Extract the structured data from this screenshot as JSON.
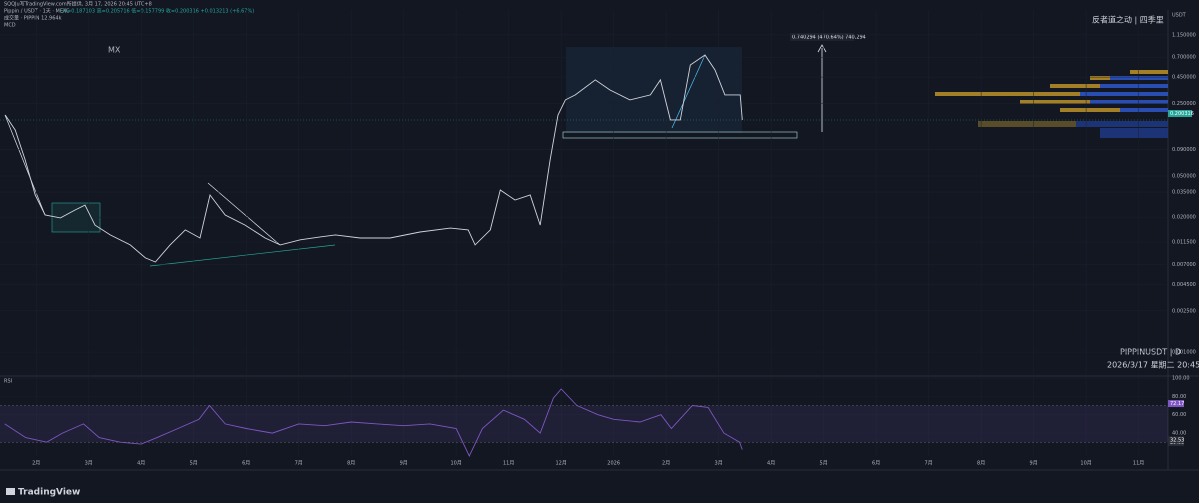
{
  "header": {
    "source": "SQQJu写TradingView.com所提供, 3月 17, 2026 20:45 UTC+8",
    "symbol": "Pippin / USDT · 1天 · MEXC",
    "ohlc": "开=0.187103 高=0.205716 低=0.157799 收=0.200316 +0.013213 (+6.67%)",
    "volume": "成交量 · PIPPIN 12.964k",
    "indicator": "MCD"
  },
  "watermark": "反者道之动 | 四季里",
  "chart_data": [
    {
      "type": "line",
      "log_scale": true,
      "color": "#d1d4dc",
      "currency": "USDT",
      "x": [
        -0.59,
        -0.4,
        -0.21,
        -0.02,
        0.17,
        0.46,
        0.74,
        0.93,
        1.12,
        1.41,
        1.79,
        2.08,
        2.27,
        2.55,
        2.84,
        3.12,
        3.31,
        3.6,
        3.98,
        4.36,
        4.65,
        5.03,
        5.41,
        5.7,
        6.17,
        6.74,
        7.31,
        7.89,
        8.23,
        8.36,
        8.65,
        8.84,
        9.12,
        9.41,
        9.6,
        9.79,
        9.94,
        10.08,
        10.27,
        10.65,
        10.93,
        11.31,
        11.7,
        11.89,
        12.08,
        12.27,
        12.46,
        12.74,
        12.93,
        13.12,
        13.41,
        13.45
      ],
      "values": [
        0.194,
        0.139,
        0.0713,
        0.0328,
        0.021,
        0.0197,
        0.0235,
        0.0262,
        0.0168,
        0.0135,
        0.0108,
        0.00809,
        0.0074,
        0.0108,
        0.0151,
        0.0126,
        0.0328,
        0.021,
        0.0168,
        0.0126,
        0.0108,
        0.0121,
        0.0129,
        0.0135,
        0.0126,
        0.0126,
        0.0144,
        0.0157,
        0.0151,
        0.0108,
        0.0151,
        0.0366,
        0.0293,
        0.0328,
        0.0168,
        0.0713,
        0.194,
        0.271,
        0.303,
        0.423,
        0.338,
        0.271,
        0.303,
        0.423,
        0.174,
        0.174,
        0.589,
        0.736,
        0.527,
        0.303,
        0.303,
        0.174
      ],
      "xlim": [
        -0.69,
        21.56
      ],
      "xticks": [
        {
          "value": 0,
          "label": "2月"
        },
        {
          "value": 1,
          "label": "3月"
        },
        {
          "value": 2,
          "label": "4月"
        },
        {
          "value": 3,
          "label": "5月"
        },
        {
          "value": 4,
          "label": "6月"
        },
        {
          "value": 5,
          "label": "7月"
        },
        {
          "value": 6,
          "label": "8月"
        },
        {
          "value": 7,
          "label": "9月"
        },
        {
          "value": 8,
          "label": "10月"
        },
        {
          "value": 9,
          "label": "11月"
        },
        {
          "value": 10,
          "label": "12月"
        },
        {
          "value": 11,
          "label": "2026"
        },
        {
          "value": 12,
          "label": "2月"
        },
        {
          "value": 13,
          "label": "3月"
        },
        {
          "value": 14,
          "label": "4月"
        },
        {
          "value": 15,
          "label": "5月"
        },
        {
          "value": 16,
          "label": "6月"
        },
        {
          "value": 17,
          "label": "7月"
        },
        {
          "value": 18,
          "label": "8月"
        },
        {
          "value": 19,
          "label": "9月"
        },
        {
          "value": 20,
          "label": "10月"
        },
        {
          "value": 21,
          "label": "11月"
        }
      ],
      "ylim": [
        0.0006,
        2.0
      ],
      "yticks": [
        {
          "value": 1.15,
          "label": "1.150000"
        },
        {
          "value": 0.7,
          "label": "0.700000"
        },
        {
          "value": 0.45,
          "label": "0.450000"
        },
        {
          "value": 0.25,
          "label": "0.250000"
        },
        {
          "value": 0.09,
          "label": "0.090000"
        },
        {
          "value": 0.05,
          "label": "0.050000"
        },
        {
          "value": 0.035,
          "label": "0.035000"
        },
        {
          "value": 0.02,
          "label": "0.020000"
        },
        {
          "value": 0.0115,
          "label": "0.011500"
        },
        {
          "value": 0.007,
          "label": "0.007000"
        },
        {
          "value": 0.0045,
          "label": "0.004500"
        },
        {
          "value": 0.0025,
          "label": "0.002500"
        },
        {
          "value": 0.001,
          "label": "0.001000"
        }
      ],
      "last_price": 0.200316,
      "annotations": [
        "MX",
        "0.740294 (470.64%) 740,294"
      ],
      "symbol_info": "PIPPINUSDT | D",
      "datetime": "2026/3/17 星期二 20:45"
    },
    {
      "type": "line",
      "title": "RSI",
      "color": "#7e57c2",
      "x": [
        -0.6,
        -0.2,
        0.2,
        0.5,
        0.9,
        1.2,
        1.6,
        2.0,
        2.3,
        2.7,
        3.1,
        3.3,
        3.6,
        4.0,
        4.5,
        5.0,
        5.5,
        6.0,
        6.5,
        7.0,
        7.5,
        8.0,
        8.25,
        8.5,
        8.9,
        9.3,
        9.6,
        9.85,
        10.0,
        10.3,
        10.7,
        11.0,
        11.5,
        11.9,
        12.1,
        12.5,
        12.8,
        13.1,
        13.4,
        13.45
      ],
      "values": [
        50,
        35,
        30,
        40,
        50,
        35,
        30,
        28,
        35,
        45,
        55,
        70,
        50,
        45,
        40,
        50,
        48,
        52,
        50,
        48,
        50,
        45,
        15,
        45,
        65,
        55,
        40,
        78,
        88,
        70,
        60,
        55,
        52,
        60,
        45,
        70,
        68,
        40,
        30,
        22
      ],
      "ylim": [
        15,
        100
      ],
      "yticks": [
        {
          "value": 100,
          "label": "100.00"
        },
        {
          "value": 80,
          "label": "80.00"
        },
        {
          "value": 60,
          "label": "60.00"
        },
        {
          "value": 40,
          "label": "40.00"
        }
      ],
      "band": [
        30,
        70
      ],
      "markers": [
        72.17,
        29.83,
        32.53
      ]
    }
  ],
  "footer": {
    "brand": "TradingView"
  }
}
